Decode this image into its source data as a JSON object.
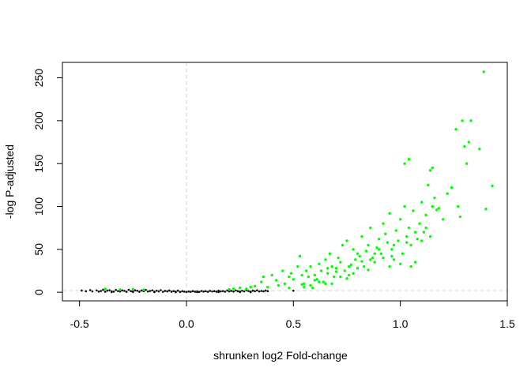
{
  "chart_data": {
    "type": "scatter",
    "title": "",
    "xlabel": "shrunken log2 Fold-change",
    "ylabel": "-log P-adjusted",
    "xlim": [
      -0.58,
      1.5
    ],
    "ylim": [
      -10,
      268
    ],
    "x_ticks": [
      -0.5,
      0.0,
      0.5,
      1.0,
      1.5
    ],
    "x_tick_labels": [
      "-0.5",
      "0.0",
      "0.5",
      "1.0",
      "1.5"
    ],
    "y_ticks": [
      0,
      50,
      100,
      150,
      200,
      250
    ],
    "y_tick_labels": [
      "0",
      "50",
      "100",
      "150",
      "200",
      "250"
    ],
    "grid": false,
    "legend": "none",
    "reference_lines": {
      "vertical_x": 0.0,
      "horizontal_y": 2.0,
      "style": "dashed",
      "color": "#d3d3d3"
    },
    "colors": {
      "significant": "#00ff00",
      "not_significant": "#000000"
    },
    "series": [
      {
        "color": "#000000",
        "points": [
          [
            -0.49,
            2.0
          ],
          [
            -0.47,
            1.2
          ],
          [
            -0.45,
            2.5
          ],
          [
            -0.44,
            1.0
          ],
          [
            -0.42,
            2.2
          ],
          [
            -0.41,
            0.8
          ],
          [
            -0.4,
            1.5
          ],
          [
            -0.39,
            2.8
          ],
          [
            -0.38,
            0.6
          ],
          [
            -0.37,
            1.9
          ],
          [
            -0.36,
            2.4
          ],
          [
            -0.35,
            1.1
          ],
          [
            -0.34,
            0.7
          ],
          [
            -0.33,
            2.6
          ],
          [
            -0.32,
            1.4
          ],
          [
            -0.31,
            0.9
          ],
          [
            -0.3,
            2.1
          ],
          [
            -0.29,
            1.6
          ],
          [
            -0.28,
            0.5
          ],
          [
            -0.27,
            2.9
          ],
          [
            -0.26,
            1.3
          ],
          [
            -0.25,
            0.8
          ],
          [
            -0.24,
            2.3
          ],
          [
            -0.23,
            1.7
          ],
          [
            -0.22,
            0.6
          ],
          [
            -0.21,
            2.0
          ],
          [
            -0.2,
            1.2
          ],
          [
            -0.19,
            2.7
          ],
          [
            -0.18,
            0.9
          ],
          [
            -0.17,
            1.5
          ],
          [
            -0.16,
            2.2
          ],
          [
            -0.15,
            0.7
          ],
          [
            -0.14,
            1.8
          ],
          [
            -0.13,
            1.0
          ],
          [
            -0.12,
            2.4
          ],
          [
            -0.11,
            0.5
          ],
          [
            -0.1,
            1.6
          ],
          [
            -0.09,
            1.1
          ],
          [
            -0.08,
            2.0
          ],
          [
            -0.07,
            0.6
          ],
          [
            -0.06,
            1.4
          ],
          [
            -0.05,
            0.8
          ],
          [
            -0.04,
            1.9
          ],
          [
            -0.03,
            0.4
          ],
          [
            -0.02,
            1.2
          ],
          [
            -0.01,
            0.7
          ],
          [
            0.0,
            0.3
          ],
          [
            0.01,
            0.9
          ],
          [
            0.02,
            0.5
          ],
          [
            0.03,
            1.3
          ],
          [
            0.04,
            0.6
          ],
          [
            0.05,
            1.0
          ],
          [
            0.06,
            0.4
          ],
          [
            0.07,
            1.5
          ],
          [
            0.08,
            0.8
          ],
          [
            0.09,
            1.2
          ],
          [
            0.1,
            0.5
          ],
          [
            0.11,
            1.6
          ],
          [
            0.12,
            0.9
          ],
          [
            0.13,
            1.3
          ],
          [
            0.14,
            0.6
          ],
          [
            0.15,
            1.8
          ],
          [
            0.16,
            1.0
          ],
          [
            0.17,
            1.4
          ],
          [
            0.18,
            0.7
          ],
          [
            0.19,
            2.0
          ],
          [
            0.2,
            1.1
          ],
          [
            0.21,
            1.6
          ],
          [
            0.22,
            0.8
          ],
          [
            0.23,
            2.1
          ],
          [
            0.24,
            1.3
          ],
          [
            0.25,
            0.9
          ],
          [
            0.26,
            1.7
          ],
          [
            0.27,
            1.0
          ],
          [
            0.28,
            2.2
          ],
          [
            0.29,
            1.4
          ],
          [
            0.3,
            0.8
          ],
          [
            0.31,
            1.9
          ],
          [
            0.32,
            1.2
          ],
          [
            0.33,
            2.3
          ],
          [
            0.34,
            0.9
          ],
          [
            0.35,
            1.5
          ],
          [
            0.36,
            1.1
          ],
          [
            0.37,
            2.0
          ],
          [
            0.38,
            1.3
          ],
          [
            0.5,
            1.8
          ],
          [
            -0.35,
            0.2
          ],
          [
            -0.25,
            0.3
          ],
          [
            -0.15,
            0.2
          ],
          [
            -0.05,
            0.1
          ],
          [
            0.05,
            0.2
          ],
          [
            0.15,
            0.3
          ],
          [
            0.25,
            0.2
          ],
          [
            0.3,
            0.1
          ]
        ]
      },
      {
        "color": "#00ff00",
        "points": [
          [
            -0.38,
            4.0
          ],
          [
            -0.31,
            3.0
          ],
          [
            -0.25,
            3.5
          ],
          [
            -0.2,
            2.8
          ],
          [
            0.2,
            3.2
          ],
          [
            0.22,
            4.0
          ],
          [
            0.25,
            5.0
          ],
          [
            0.28,
            4.0
          ],
          [
            0.3,
            6.0
          ],
          [
            0.32,
            7.0
          ],
          [
            0.35,
            12.0
          ],
          [
            0.36,
            18.0
          ],
          [
            0.38,
            6.0
          ],
          [
            0.4,
            20.0
          ],
          [
            0.42,
            14.0
          ],
          [
            0.43,
            8.0
          ],
          [
            0.45,
            25.0
          ],
          [
            0.46,
            10.0
          ],
          [
            0.48,
            18.0
          ],
          [
            0.49,
            22.0
          ],
          [
            0.5,
            15.0
          ],
          [
            0.52,
            30.0
          ],
          [
            0.53,
            42.0
          ],
          [
            0.54,
            20.0
          ],
          [
            0.55,
            10.0
          ],
          [
            0.56,
            25.0
          ],
          [
            0.57,
            18.0
          ],
          [
            0.58,
            30.0
          ],
          [
            0.59,
            5.0
          ],
          [
            0.6,
            20.0
          ],
          [
            0.61,
            15.0
          ],
          [
            0.62,
            33.0
          ],
          [
            0.63,
            25.0
          ],
          [
            0.64,
            12.0
          ],
          [
            0.65,
            38.0
          ],
          [
            0.66,
            22.0
          ],
          [
            0.67,
            45.0
          ],
          [
            0.68,
            30.0
          ],
          [
            0.69,
            18.0
          ],
          [
            0.7,
            28.0
          ],
          [
            0.71,
            40.0
          ],
          [
            0.72,
            35.0
          ],
          [
            0.73,
            55.0
          ],
          [
            0.74,
            25.0
          ],
          [
            0.75,
            60.0
          ],
          [
            0.76,
            20.0
          ],
          [
            0.77,
            32.0
          ],
          [
            0.78,
            50.0
          ],
          [
            0.79,
            38.0
          ],
          [
            0.8,
            28.0
          ],
          [
            0.81,
            42.0
          ],
          [
            0.82,
            65.0
          ],
          [
            0.83,
            30.0
          ],
          [
            0.84,
            48.0
          ],
          [
            0.85,
            55.0
          ],
          [
            0.86,
            75.0
          ],
          [
            0.87,
            40.0
          ],
          [
            0.88,
            35.0
          ],
          [
            0.89,
            52.0
          ],
          [
            0.9,
            62.0
          ],
          [
            0.91,
            45.0
          ],
          [
            0.92,
            80.0
          ],
          [
            0.93,
            68.0
          ],
          [
            0.94,
            58.0
          ],
          [
            0.95,
            92.0
          ],
          [
            0.96,
            50.0
          ],
          [
            0.97,
            38.0
          ],
          [
            0.98,
            72.0
          ],
          [
            0.99,
            60.0
          ],
          [
            1.0,
            85.0
          ],
          [
            1.01,
            45.0
          ],
          [
            1.02,
            100.0
          ],
          [
            1.03,
            65.0
          ],
          [
            1.04,
            75.0
          ],
          [
            1.05,
            55.0
          ],
          [
            1.06,
            95.0
          ],
          [
            1.07,
            35.0
          ],
          [
            1.08,
            62.0
          ],
          [
            1.09,
            80.0
          ],
          [
            1.1,
            105.0
          ],
          [
            1.11,
            70.0
          ],
          [
            1.12,
            90.0
          ],
          [
            1.13,
            125.0
          ],
          [
            1.14,
            65.0
          ],
          [
            1.15,
            145.0
          ],
          [
            1.16,
            110.0
          ],
          [
            1.18,
            98.0
          ],
          [
            1.2,
            85.0
          ],
          [
            1.22,
            115.0
          ],
          [
            1.24,
            122.0
          ],
          [
            1.26,
            190.0
          ],
          [
            1.27,
            100.0
          ],
          [
            1.28,
            88.0
          ],
          [
            1.29,
            200.0
          ],
          [
            1.3,
            170.0
          ],
          [
            1.31,
            150.0
          ],
          [
            1.32,
            175.0
          ],
          [
            1.33,
            200.0
          ],
          [
            1.37,
            167.0
          ],
          [
            1.39,
            257.0
          ],
          [
            1.4,
            97.0
          ],
          [
            1.43,
            124.0
          ],
          [
            1.02,
            150.0
          ],
          [
            1.04,
            155.0
          ],
          [
            1.14,
            142.0
          ],
          [
            0.95,
            30.0
          ],
          [
            0.85,
            26.0
          ],
          [
            0.75,
            16.0
          ],
          [
            0.65,
            10.0
          ],
          [
            0.55,
            6.0
          ],
          [
            0.92,
            40.0
          ],
          [
            0.88,
            45.0
          ],
          [
            0.82,
            36.0
          ],
          [
            0.78,
            22.0
          ],
          [
            0.72,
            18.0
          ],
          [
            0.68,
            10.0
          ],
          [
            0.62,
            12.0
          ],
          [
            0.58,
            8.0
          ],
          [
            0.97,
            55.0
          ],
          [
            1.03,
            58.0
          ],
          [
            1.07,
            70.0
          ],
          [
            1.1,
            60.0
          ],
          [
            1.12,
            75.0
          ],
          [
            1.15,
            100.0
          ],
          [
            1.17,
            96.0
          ],
          [
            1.05,
            30.0
          ],
          [
            1.0,
            33.0
          ],
          [
            0.96,
            42.0
          ],
          [
            0.9,
            50.0
          ],
          [
            0.86,
            38.0
          ],
          [
            0.8,
            45.0
          ],
          [
            0.76,
            30.0
          ],
          [
            0.7,
            24.0
          ],
          [
            0.66,
            28.0
          ],
          [
            0.6,
            14.0
          ],
          [
            0.54,
            9.0
          ],
          [
            0.48,
            5.0
          ]
        ]
      }
    ]
  }
}
